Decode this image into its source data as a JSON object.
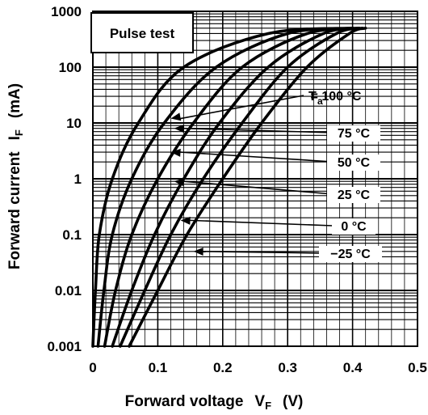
{
  "chart_data": {
    "type": "line",
    "title": "",
    "xlabel": "Forward voltage",
    "xlabel_symbol": "V",
    "xlabel_sub": "F",
    "xlabel_unit": "(V)",
    "ylabel": "Forward current",
    "ylabel_symbol": "I",
    "ylabel_sub": "F",
    "ylabel_unit": "(mA)",
    "xlim": [
      0,
      0.5
    ],
    "ylim": [
      0.001,
      1000
    ],
    "yscale": "log",
    "grid": true,
    "x_ticks": [
      "0",
      "0.1",
      "0.2",
      "0.3",
      "0.4",
      "0.5"
    ],
    "y_ticks": [
      "0.001",
      "0.01",
      "0.1",
      "1",
      "10",
      "100",
      "1000"
    ],
    "condition_label": "Pulse test",
    "legend_prefix": "T",
    "legend_prefix_sub": "a",
    "series": [
      {
        "name": "100 °C",
        "label": "= 100 °C",
        "points": [
          [
            0.0,
            0.001
          ],
          [
            0.004,
            0.01
          ],
          [
            0.01,
            0.1
          ],
          [
            0.03,
            1
          ],
          [
            0.07,
            10
          ],
          [
            0.14,
            100
          ],
          [
            0.27,
            400
          ],
          [
            0.4,
            500
          ]
        ]
      },
      {
        "name": "75 °C",
        "label": "75 °C",
        "points": [
          [
            0.008,
            0.001
          ],
          [
            0.017,
            0.01
          ],
          [
            0.03,
            0.1
          ],
          [
            0.06,
            1
          ],
          [
            0.11,
            10
          ],
          [
            0.19,
            100
          ],
          [
            0.3,
            400
          ],
          [
            0.4,
            500
          ]
        ]
      },
      {
        "name": "50 °C",
        "label": "50 °C",
        "points": [
          [
            0.018,
            0.001
          ],
          [
            0.035,
            0.01
          ],
          [
            0.06,
            0.1
          ],
          [
            0.1,
            1
          ],
          [
            0.155,
            10
          ],
          [
            0.23,
            100
          ],
          [
            0.33,
            400
          ],
          [
            0.41,
            500
          ]
        ]
      },
      {
        "name": "25 °C",
        "label": "25 °C",
        "points": [
          [
            0.03,
            0.001
          ],
          [
            0.06,
            0.01
          ],
          [
            0.095,
            0.1
          ],
          [
            0.14,
            1
          ],
          [
            0.195,
            10
          ],
          [
            0.27,
            100
          ],
          [
            0.355,
            400
          ],
          [
            0.41,
            500
          ]
        ]
      },
      {
        "name": "0 °C",
        "label": "0 °C",
        "points": [
          [
            0.042,
            0.001
          ],
          [
            0.08,
            0.01
          ],
          [
            0.12,
            0.1
          ],
          [
            0.17,
            1
          ],
          [
            0.23,
            10
          ],
          [
            0.3,
            100
          ],
          [
            0.375,
            400
          ],
          [
            0.415,
            500
          ]
        ]
      },
      {
        "name": "−25 °C",
        "label": "−25 °C",
        "points": [
          [
            0.056,
            0.001
          ],
          [
            0.1,
            0.01
          ],
          [
            0.145,
            0.1
          ],
          [
            0.2,
            1
          ],
          [
            0.26,
            10
          ],
          [
            0.33,
            100
          ],
          [
            0.395,
            400
          ],
          [
            0.42,
            500
          ]
        ]
      }
    ],
    "annotation_targets": [
      [
        0.12,
        12
      ],
      [
        0.125,
        8
      ],
      [
        0.12,
        3
      ],
      [
        0.125,
        0.9
      ],
      [
        0.135,
        0.18
      ],
      [
        0.155,
        0.05
      ]
    ]
  }
}
